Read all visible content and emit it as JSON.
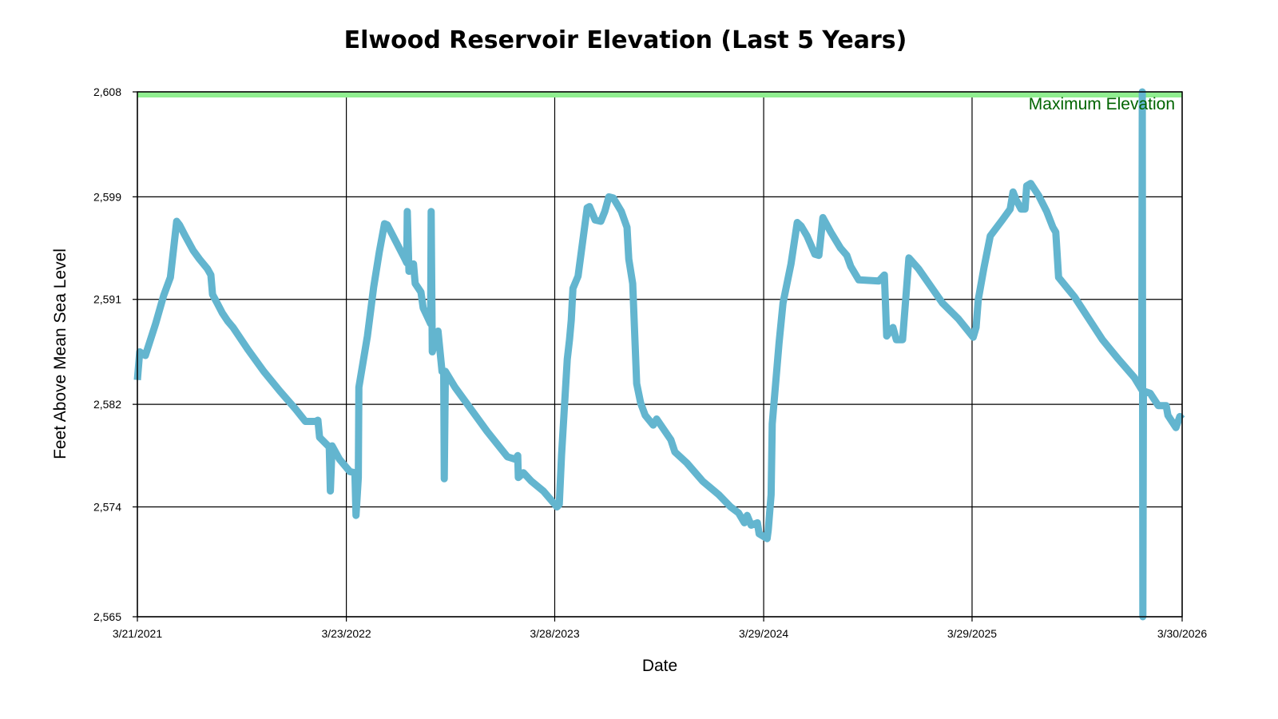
{
  "chart_data": {
    "type": "line",
    "title": "Elwood Reservoir Elevation (Last 5 Years)",
    "xlabel": "Date",
    "ylabel": "Feet Above Mean Sea Level",
    "x_unit": "days since 3/21/2021",
    "xlim": [
      0,
      1835
    ],
    "ylim": [
      2565,
      2608
    ],
    "grid": true,
    "x_ticks": [
      {
        "label": "3/21/2021",
        "day": 0
      },
      {
        "label": "3/23/2022",
        "day": 367
      },
      {
        "label": "3/28/2023",
        "day": 733
      },
      {
        "label": "3/29/2024",
        "day": 1100
      },
      {
        "label": "3/29/2025",
        "day": 1466
      },
      {
        "label": "3/30/2026",
        "day": 1835
      }
    ],
    "y_ticks": [
      {
        "label": "2,565",
        "value": 2565
      },
      {
        "label": "2,574",
        "value": 2574
      },
      {
        "label": "2,582",
        "value": 2582.4
      },
      {
        "label": "2,591",
        "value": 2591
      },
      {
        "label": "2,599",
        "value": 2599.4
      },
      {
        "label": "2,608",
        "value": 2608
      }
    ],
    "reference_line": {
      "label": "Maximum Elevation",
      "value": 2608,
      "color": "#90ee90",
      "label_color": "#006400"
    },
    "series": [
      {
        "name": "Elevation",
        "color": "#63b5cf",
        "points": [
          [
            0,
            2584.4
          ],
          [
            4,
            2586.7
          ],
          [
            14,
            2586.4
          ],
          [
            32,
            2589.0
          ],
          [
            46,
            2591.3
          ],
          [
            58,
            2592.8
          ],
          [
            69,
            2597.4
          ],
          [
            74,
            2597.1
          ],
          [
            84,
            2596.2
          ],
          [
            98,
            2595.0
          ],
          [
            109,
            2594.3
          ],
          [
            123,
            2593.5
          ],
          [
            129,
            2593.0
          ],
          [
            132,
            2591.4
          ],
          [
            140,
            2590.7
          ],
          [
            149,
            2589.9
          ],
          [
            159,
            2589.2
          ],
          [
            168,
            2588.7
          ],
          [
            194,
            2586.9
          ],
          [
            222,
            2585.1
          ],
          [
            250,
            2583.5
          ],
          [
            278,
            2582.0
          ],
          [
            295,
            2581.0
          ],
          [
            313,
            2581.0
          ],
          [
            317,
            2581.1
          ],
          [
            320,
            2579.7
          ],
          [
            337,
            2578.9
          ],
          [
            339,
            2575.3
          ],
          [
            342,
            2579.0
          ],
          [
            355,
            2577.9
          ],
          [
            373,
            2576.9
          ],
          [
            382,
            2576.8
          ],
          [
            384,
            2573.3
          ],
          [
            388,
            2576.4
          ],
          [
            389,
            2583.8
          ],
          [
            404,
            2588.0
          ],
          [
            415,
            2592.0
          ],
          [
            425,
            2594.9
          ],
          [
            434,
            2597.2
          ],
          [
            439,
            2597.1
          ],
          [
            460,
            2595.2
          ],
          [
            470,
            2594.3
          ],
          [
            473,
            2594.0
          ],
          [
            474,
            2598.2
          ],
          [
            477,
            2593.3
          ],
          [
            485,
            2593.9
          ],
          [
            488,
            2592.3
          ],
          [
            498,
            2591.6
          ],
          [
            502,
            2590.3
          ],
          [
            512,
            2589.3
          ],
          [
            515,
            2589.0
          ],
          [
            516,
            2598.2
          ],
          [
            518,
            2586.7
          ],
          [
            528,
            2588.4
          ],
          [
            535,
            2585.1
          ],
          [
            538,
            2585.0
          ],
          [
            539,
            2576.3
          ],
          [
            541,
            2585.1
          ],
          [
            558,
            2583.8
          ],
          [
            586,
            2582.0
          ],
          [
            614,
            2580.2
          ],
          [
            650,
            2578.1
          ],
          [
            664,
            2577.9
          ],
          [
            668,
            2578.2
          ],
          [
            669,
            2576.4
          ],
          [
            678,
            2576.8
          ],
          [
            692,
            2576.1
          ],
          [
            713,
            2575.3
          ],
          [
            737,
            2574.0
          ],
          [
            741,
            2574.2
          ],
          [
            745,
            2578.2
          ],
          [
            755,
            2586.1
          ],
          [
            759,
            2587.7
          ],
          [
            762,
            2589.3
          ],
          [
            765,
            2591.9
          ],
          [
            774,
            2592.9
          ],
          [
            790,
            2598.5
          ],
          [
            794,
            2598.6
          ],
          [
            804,
            2597.5
          ],
          [
            814,
            2597.4
          ],
          [
            821,
            2598.2
          ],
          [
            828,
            2599.4
          ],
          [
            836,
            2599.3
          ],
          [
            850,
            2598.2
          ],
          [
            860,
            2596.9
          ],
          [
            863,
            2594.3
          ],
          [
            870,
            2592.3
          ],
          [
            877,
            2584.1
          ],
          [
            884,
            2582.5
          ],
          [
            892,
            2581.5
          ],
          [
            906,
            2580.7
          ],
          [
            912,
            2581.2
          ],
          [
            937,
            2579.5
          ],
          [
            944,
            2578.5
          ],
          [
            965,
            2577.6
          ],
          [
            993,
            2576.1
          ],
          [
            1021,
            2575.0
          ],
          [
            1042,
            2574.0
          ],
          [
            1056,
            2573.5
          ],
          [
            1066,
            2572.7
          ],
          [
            1071,
            2573.3
          ],
          [
            1078,
            2572.5
          ],
          [
            1089,
            2572.7
          ],
          [
            1092,
            2571.8
          ],
          [
            1106,
            2571.4
          ],
          [
            1108,
            2572.1
          ],
          [
            1113,
            2575.0
          ],
          [
            1115,
            2580.8
          ],
          [
            1127,
            2587.4
          ],
          [
            1134,
            2590.7
          ],
          [
            1148,
            2593.9
          ],
          [
            1159,
            2597.3
          ],
          [
            1166,
            2597.0
          ],
          [
            1176,
            2596.2
          ],
          [
            1190,
            2594.7
          ],
          [
            1197,
            2594.6
          ],
          [
            1204,
            2597.7
          ],
          [
            1218,
            2596.5
          ],
          [
            1235,
            2595.2
          ],
          [
            1246,
            2594.6
          ],
          [
            1253,
            2593.7
          ],
          [
            1267,
            2592.6
          ],
          [
            1302,
            2592.5
          ],
          [
            1312,
            2593.0
          ],
          [
            1316,
            2588.0
          ],
          [
            1327,
            2588.7
          ],
          [
            1333,
            2587.7
          ],
          [
            1344,
            2587.7
          ],
          [
            1355,
            2594.4
          ],
          [
            1372,
            2593.5
          ],
          [
            1414,
            2590.7
          ],
          [
            1442,
            2589.4
          ],
          [
            1468,
            2587.9
          ],
          [
            1473,
            2588.7
          ],
          [
            1477,
            2591.0
          ],
          [
            1487,
            2593.6
          ],
          [
            1498,
            2596.2
          ],
          [
            1519,
            2597.5
          ],
          [
            1533,
            2598.4
          ],
          [
            1538,
            2599.8
          ],
          [
            1543,
            2599.2
          ],
          [
            1552,
            2598.4
          ],
          [
            1559,
            2598.4
          ],
          [
            1562,
            2600.3
          ],
          [
            1569,
            2600.5
          ],
          [
            1583,
            2599.5
          ],
          [
            1597,
            2598.2
          ],
          [
            1608,
            2596.9
          ],
          [
            1613,
            2596.5
          ],
          [
            1618,
            2592.8
          ],
          [
            1632,
            2592.0
          ],
          [
            1646,
            2591.2
          ],
          [
            1667,
            2589.7
          ],
          [
            1695,
            2587.7
          ],
          [
            1723,
            2586.1
          ],
          [
            1751,
            2584.6
          ],
          [
            1764,
            2583.6
          ],
          [
            1765,
            2608.0
          ],
          [
            1766,
            2565.0
          ],
          [
            1767,
            2583.5
          ],
          [
            1779,
            2583.3
          ],
          [
            1793,
            2582.3
          ],
          [
            1807,
            2582.3
          ],
          [
            1810,
            2581.5
          ],
          [
            1824,
            2580.5
          ],
          [
            1831,
            2581.4
          ],
          [
            1835,
            2581.2
          ]
        ]
      }
    ]
  }
}
